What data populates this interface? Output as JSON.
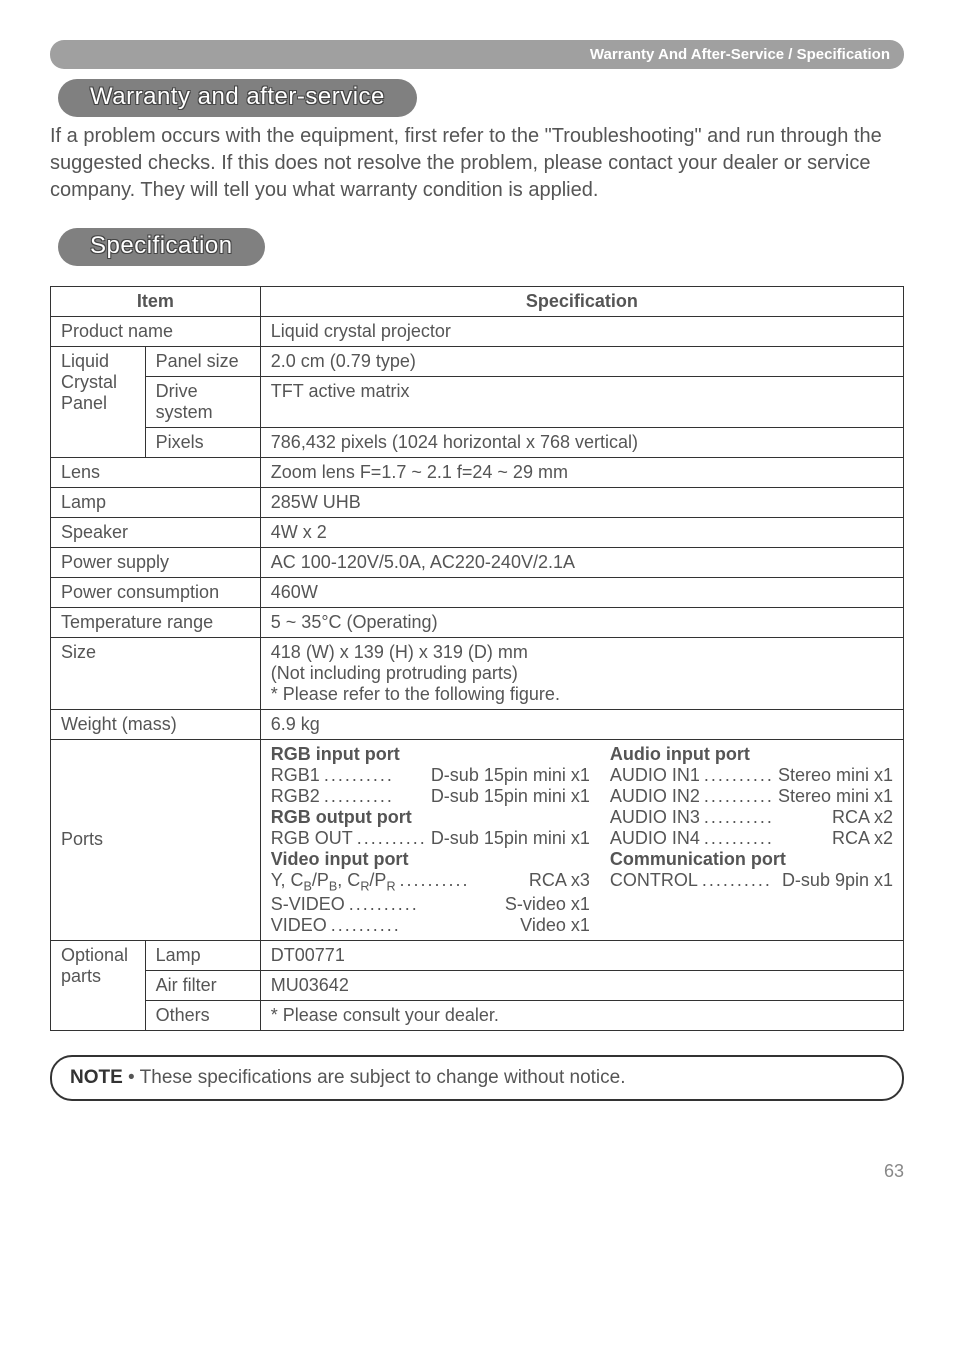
{
  "header": {
    "breadcrumb": "Warranty And After-Service / Specification"
  },
  "warranty": {
    "heading": "Warranty and after-service",
    "paragraph": "If a problem occurs with the equipment, first refer to the \"Troubleshooting\" and run through the suggested checks. If this does not resolve the problem, please contact your dealer or service company. They will tell you what warranty condition is applied."
  },
  "specification": {
    "heading": "Specification",
    "table": {
      "header_item": "Item",
      "header_spec": "Specification",
      "product_name": {
        "label": "Product name",
        "value": "Liquid crystal projector"
      },
      "lcp_group_label": "Liquid Crystal Panel",
      "panel_size": {
        "label": "Panel size",
        "value": "2.0 cm (0.79 type)"
      },
      "drive_system": {
        "label": "Drive system",
        "value": "TFT active matrix"
      },
      "pixels": {
        "label": "Pixels",
        "value": "786,432 pixels (1024 horizontal x 768 vertical)"
      },
      "lens": {
        "label": "Lens",
        "value": "Zoom lens F=1.7 ~ 2.1  f=24 ~ 29 mm"
      },
      "lamp": {
        "label": "Lamp",
        "value": "285W UHB"
      },
      "speaker": {
        "label": "Speaker",
        "value": "4W x 2"
      },
      "power_supply": {
        "label": "Power supply",
        "value": "AC 100-120V/5.0A, AC220-240V/2.1A"
      },
      "power_consumption": {
        "label": "Power consumption",
        "value": "460W"
      },
      "temp_range": {
        "label": "Temperature range",
        "value": "5 ~ 35°C (Operating)"
      },
      "size": {
        "label": "Size",
        "line1": "418 (W) x 139 (H) x 319 (D) mm",
        "line2": "(Not including protruding parts)",
        "line3": "* Please refer to the following figure."
      },
      "weight": {
        "label": "Weight (mass)",
        "value": "6.9 kg"
      },
      "ports": {
        "label": "Ports",
        "rgb_input_title": "RGB input port",
        "rgb_in": [
          {
            "l": "RGB1",
            "v": "D-sub 15pin mini x1"
          },
          {
            "l": "RGB2",
            "v": "D-sub 15pin mini x1"
          }
        ],
        "rgb_output_title": "RGB output port",
        "rgb_out": [
          {
            "l": "RGB OUT",
            "v": "D-sub 15pin mini x1"
          }
        ],
        "video_input_title": "Video input port",
        "video_in": [
          {
            "l": "Y, C_B/P_B, C_R/P_R",
            "v": "RCA x3"
          },
          {
            "l": "S-VIDEO",
            "v": "S-video x1"
          },
          {
            "l": "VIDEO",
            "v": "Video x1"
          }
        ],
        "audio_input_title": "Audio input port",
        "audio_in": [
          {
            "l": "AUDIO IN1",
            "v": "Stereo mini x1"
          },
          {
            "l": "AUDIO IN2",
            "v": "Stereo mini x1"
          },
          {
            "l": "AUDIO IN3",
            "v": "RCA x2"
          },
          {
            "l": "AUDIO IN4",
            "v": "RCA x2"
          }
        ],
        "comm_title": "Communication port",
        "comm": [
          {
            "l": "CONTROL",
            "v": "D-sub 9pin x1"
          }
        ]
      },
      "optional_group_label": "Optional parts",
      "opt_lamp": {
        "label": "Lamp",
        "value": "DT00771"
      },
      "opt_filter": {
        "label": "Air filter",
        "value": "MU03642"
      },
      "opt_others": {
        "label": "Others",
        "value": "* Please consult your dealer."
      }
    }
  },
  "note": {
    "label": "NOTE",
    "text": " • These specifications are subject to change without notice."
  },
  "page_number": "63"
}
